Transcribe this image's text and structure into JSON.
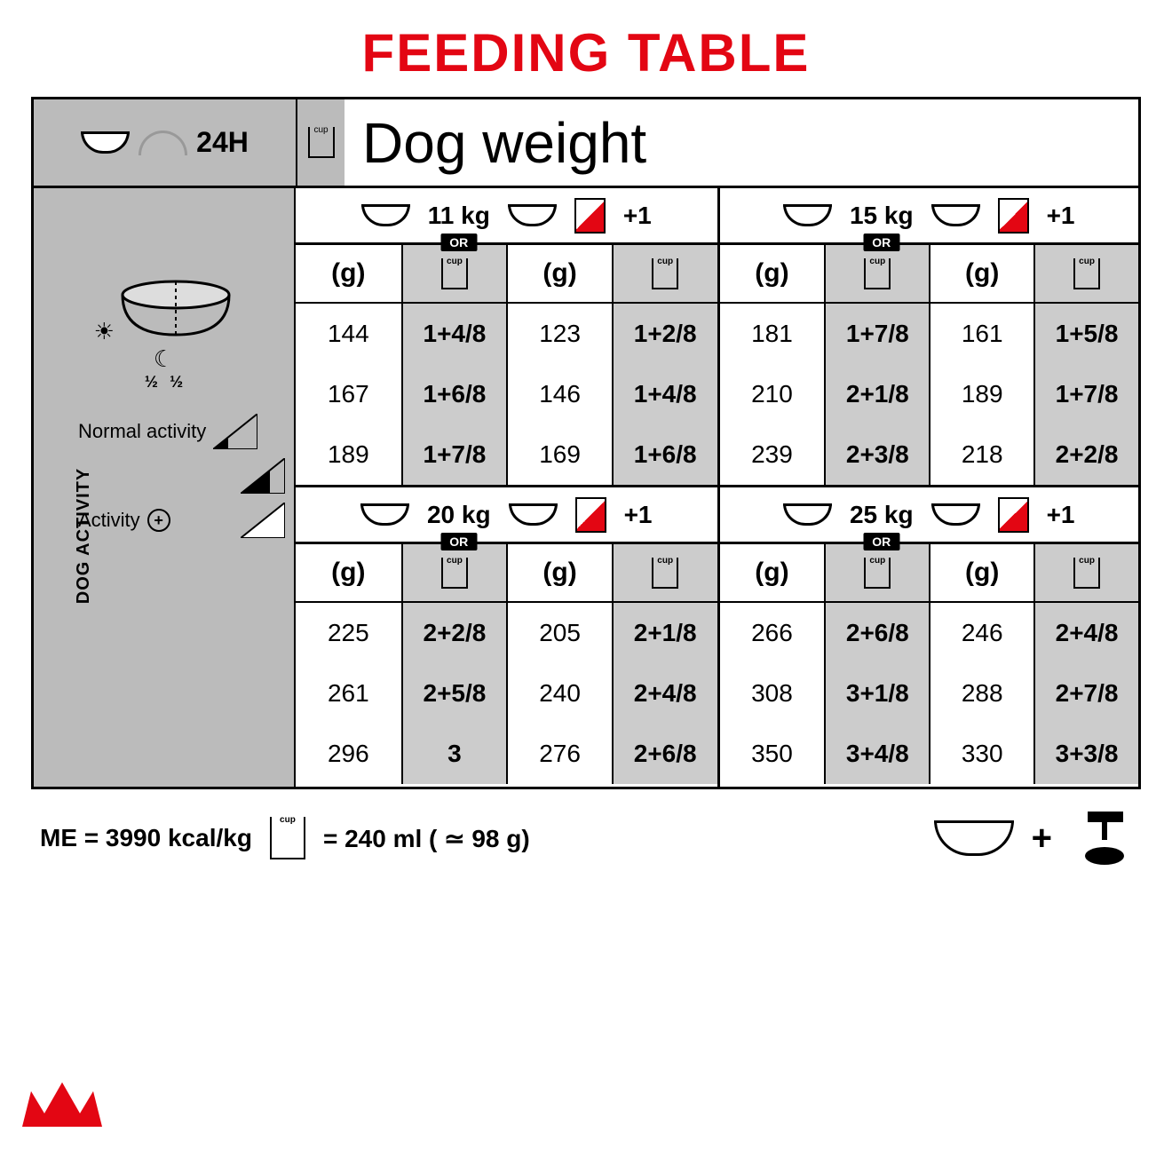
{
  "title": "FEEDING TABLE",
  "colors": {
    "brand_red": "#e30613",
    "grey_bg": "#bbbbbb",
    "grey_cell": "#cccccc",
    "border": "#000000"
  },
  "header": {
    "time_label": "24H",
    "main_label": "Dog weight",
    "cup_icon": "cup"
  },
  "sidebar": {
    "axis_label": "DOG ACTIVITY",
    "bowl_half_left": "½",
    "bowl_half_right": "½",
    "rows": [
      {
        "label": "Normal activity",
        "triangle_fill": 0.33
      },
      {
        "label": "",
        "triangle_fill": 0.66
      },
      {
        "label": "Activity",
        "plus": "+",
        "triangle_fill": 1.0
      }
    ]
  },
  "unit_headers": {
    "grams": "(g)",
    "cups_icon": "cup"
  },
  "weight_blocks": [
    {
      "weight": "11 kg",
      "or": "OR",
      "plus": "+1",
      "rows": [
        {
          "g1": "144",
          "c1": "1+4/8",
          "g2": "123",
          "c2": "1+2/8"
        },
        {
          "g1": "167",
          "c1": "1+6/8",
          "g2": "146",
          "c2": "1+4/8"
        },
        {
          "g1": "189",
          "c1": "1+7/8",
          "g2": "169",
          "c2": "1+6/8"
        }
      ]
    },
    {
      "weight": "15 kg",
      "or": "OR",
      "plus": "+1",
      "rows": [
        {
          "g1": "181",
          "c1": "1+7/8",
          "g2": "161",
          "c2": "1+5/8"
        },
        {
          "g1": "210",
          "c1": "2+1/8",
          "g2": "189",
          "c2": "1+7/8"
        },
        {
          "g1": "239",
          "c1": "2+3/8",
          "g2": "218",
          "c2": "2+2/8"
        }
      ]
    },
    {
      "weight": "20 kg",
      "or": "OR",
      "plus": "+1",
      "rows": [
        {
          "g1": "225",
          "c1": "2+2/8",
          "g2": "205",
          "c2": "2+1/8"
        },
        {
          "g1": "261",
          "c1": "2+5/8",
          "g2": "240",
          "c2": "2+4/8"
        },
        {
          "g1": "296",
          "c1": "3",
          "g2": "276",
          "c2": "2+6/8"
        }
      ]
    },
    {
      "weight": "25 kg",
      "or": "OR",
      "plus": "+1",
      "rows": [
        {
          "g1": "266",
          "c1": "2+6/8",
          "g2": "246",
          "c2": "2+4/8"
        },
        {
          "g1": "308",
          "c1": "3+1/8",
          "g2": "288",
          "c2": "2+7/8"
        },
        {
          "g1": "350",
          "c1": "3+4/8",
          "g2": "330",
          "c2": "3+3/8"
        }
      ]
    }
  ],
  "footer": {
    "me": "ME = 3990 kcal/kg",
    "cup_eq": "= 240 ml ( ≃ 98 g)",
    "plus": "+"
  }
}
